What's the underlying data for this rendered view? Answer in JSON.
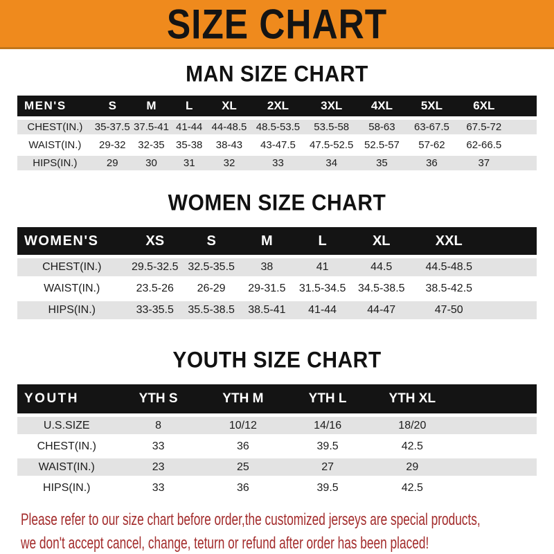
{
  "banner": {
    "title": "SIZE CHART"
  },
  "sections": [
    {
      "id": "men",
      "heading": "MAN SIZE CHART",
      "table": {
        "header_label": "MEN'S",
        "columns": [
          "S",
          "M",
          "L",
          "XL",
          "2XL",
          "3XL",
          "4XL",
          "5XL",
          "6XL"
        ],
        "rows": [
          {
            "label": "CHEST(IN.)",
            "values": [
              "35-37.5",
              "37.5-41",
              "41-44",
              "44-48.5",
              "48.5-53.5",
              "53.5-58",
              "58-63",
              "63-67.5",
              "67.5-72"
            ]
          },
          {
            "label": "WAIST(IN.)",
            "values": [
              "29-32",
              "32-35",
              "35-38",
              "38-43",
              "43-47.5",
              "47.5-52.5",
              "52.5-57",
              "57-62",
              "62-66.5"
            ]
          },
          {
            "label": "HIPS(IN.)",
            "values": [
              "29",
              "30",
              "31",
              "32",
              "33",
              "34",
              "35",
              "36",
              "37"
            ]
          }
        ]
      }
    },
    {
      "id": "women",
      "heading": "WOMEN SIZE CHART",
      "table": {
        "header_label": "WOMEN'S",
        "columns": [
          "XS",
          "S",
          "M",
          "L",
          "XL",
          "XXL"
        ],
        "rows": [
          {
            "label": "CHEST(IN.)",
            "values": [
              "29.5-32.5",
              "32.5-35.5",
              "38",
              "41",
              "44.5",
              "44.5-48.5"
            ]
          },
          {
            "label": "WAIST(IN.)",
            "values": [
              "23.5-26",
              "26-29",
              "29-31.5",
              "31.5-34.5",
              "34.5-38.5",
              "38.5-42.5"
            ]
          },
          {
            "label": "HIPS(IN.)",
            "values": [
              "33-35.5",
              "35.5-38.5",
              "38.5-41",
              "41-44",
              "44-47",
              "47-50"
            ]
          }
        ]
      }
    },
    {
      "id": "youth",
      "heading": "YOUTH SIZE CHART",
      "table": {
        "header_label": "YOUTH",
        "columns": [
          "YTH S",
          "YTH M",
          "YTH L",
          "YTH XL"
        ],
        "rows": [
          {
            "label": "U.S.SIZE",
            "values": [
              "8",
              "10/12",
              "14/16",
              "18/20"
            ]
          },
          {
            "label": "CHEST(IN.)",
            "values": [
              "33",
              "36",
              "39.5",
              "42.5"
            ]
          },
          {
            "label": "WAIST(IN.)",
            "values": [
              "23",
              "25",
              "27",
              "29"
            ]
          },
          {
            "label": "HIPS(IN.)",
            "values": [
              "33",
              "36",
              "39.5",
              "42.5"
            ]
          }
        ]
      }
    }
  ],
  "footer": {
    "line1": "Please refer to our size chart before order,the customized jerseys are special products,",
    "line2": "we don't accept cancel, change, teturn or refund after order has been placed!"
  },
  "colors": {
    "banner_orange": "#EF8A1D",
    "table_header_black": "#141414",
    "row_gray": "#E3E3E3",
    "notice_red": "#A32C2C",
    "bottom_strip_gray": "#4D4D4D"
  }
}
